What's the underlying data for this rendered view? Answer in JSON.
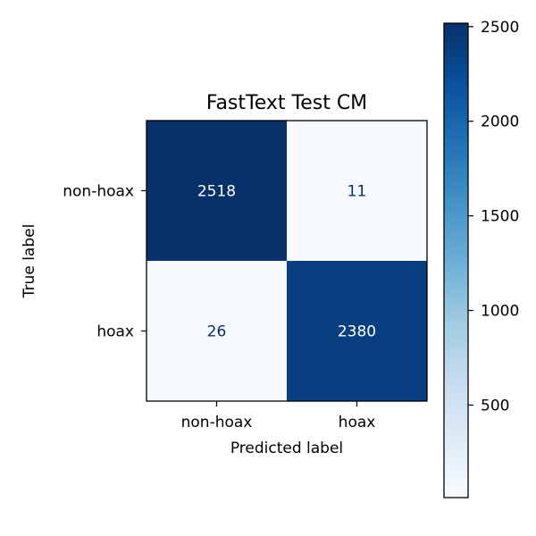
{
  "chart_data": {
    "type": "heatmap",
    "title": "FastText Test CM",
    "xlabel": "Predicted label",
    "ylabel": "True label",
    "x_categories": [
      "non-hoax",
      "hoax"
    ],
    "y_categories": [
      "non-hoax",
      "hoax"
    ],
    "values": [
      [
        2518,
        11
      ],
      [
        26,
        2380
      ]
    ],
    "colormap": "Blues",
    "colorbar": {
      "min": 11,
      "max": 2518,
      "ticks": [
        500,
        1000,
        1500,
        2000,
        2500
      ],
      "tick_labels": [
        "500",
        "1000",
        "1500",
        "2000",
        "2500"
      ]
    },
    "colors": {
      "low": "#f7fbff",
      "high": "#08306b",
      "text_on_dark": "#ffffff",
      "text_on_light": "#08306b"
    }
  }
}
